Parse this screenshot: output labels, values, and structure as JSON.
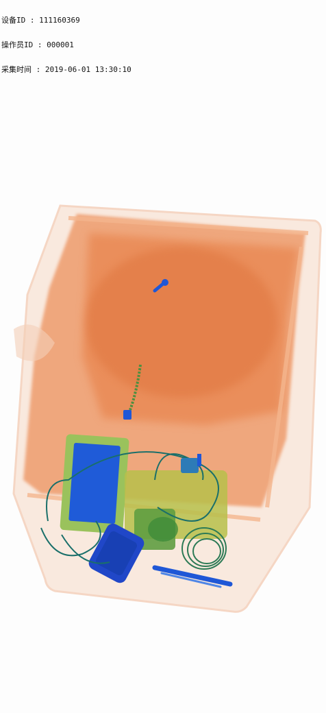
{
  "overlay": {
    "device_id_label": "设备ID",
    "device_id_value": "111160369",
    "operator_id_label": "操作员ID",
    "operator_id_value": "000001",
    "capture_time_label": "采集时间",
    "capture_time_value": "2019-06-01 13:30:10",
    "separator": " : "
  },
  "colors": {
    "background": "#fdfdfd",
    "organic": "#e8804a",
    "organic_light": "#f6c6a6",
    "mixed": "#8fbf5a",
    "inorganic": "#1f57d6",
    "wire": "#1a6f6a"
  },
  "icons": [
    "zipper-pull-icon",
    "zipper-icon",
    "tablet-icon",
    "power-adapter-icon",
    "cable-coil-icon",
    "pen-icon"
  ]
}
